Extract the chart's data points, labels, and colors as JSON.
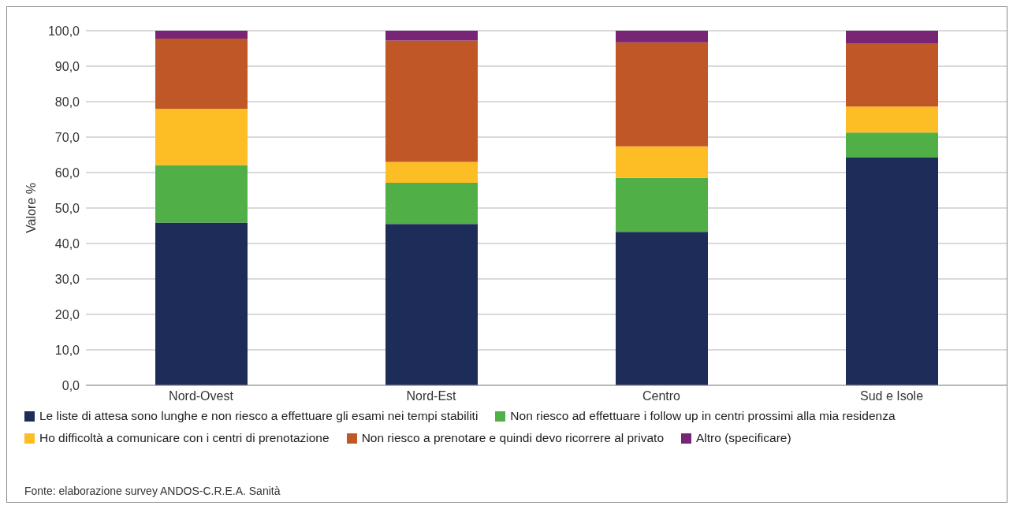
{
  "chart_data": {
    "type": "bar",
    "stacked": true,
    "ylabel": "Valore %",
    "categories": [
      "Nord-Ovest",
      "Nord-Est",
      "Centro",
      "Sud e Isole"
    ],
    "series": [
      {
        "name": "Le liste di attesa sono lunghe e non riesco a effettuare gli esami nei tempi stabiliti",
        "color": "#1d2c58",
        "values": [
          45.9,
          45.5,
          43.3,
          64.2
        ]
      },
      {
        "name": "Non riesco ad effettuare i follow up in centri prossimi alla mia residenza",
        "color": "#50b047",
        "values": [
          16.2,
          11.6,
          15.2,
          7.1
        ]
      },
      {
        "name": "Ho difficoltà a comunicare con i centri di prenotazione",
        "color": "#fdbd25",
        "values": [
          15.9,
          5.9,
          8.9,
          7.3
        ]
      },
      {
        "name": "Non riesco a prenotare e quindi devo ricorrere al privato",
        "color": "#c05726",
        "values": [
          19.8,
          34.2,
          29.3,
          17.8
        ]
      },
      {
        "name": "Altro (specificare)",
        "color": "#772574",
        "values": [
          2.2,
          2.8,
          3.3,
          3.6
        ]
      }
    ],
    "ylim": [
      0,
      100
    ],
    "yticks": [
      {
        "value": 0,
        "label": "0,0"
      },
      {
        "value": 10,
        "label": "10,0"
      },
      {
        "value": 20,
        "label": "20,0"
      },
      {
        "value": 30,
        "label": "30,0"
      },
      {
        "value": 40,
        "label": "40,0"
      },
      {
        "value": 50,
        "label": "50,0"
      },
      {
        "value": 60,
        "label": "60,0"
      },
      {
        "value": 70,
        "label": "70,0"
      },
      {
        "value": 80,
        "label": "80,0"
      },
      {
        "value": 90,
        "label": "90,0"
      },
      {
        "value": 100,
        "label": "100,0"
      }
    ],
    "grid": "y",
    "legend": "bottom",
    "annotations": [
      "Fonte: elaborazione survey ANDOS-C.R.E.A. Sanità"
    ]
  }
}
